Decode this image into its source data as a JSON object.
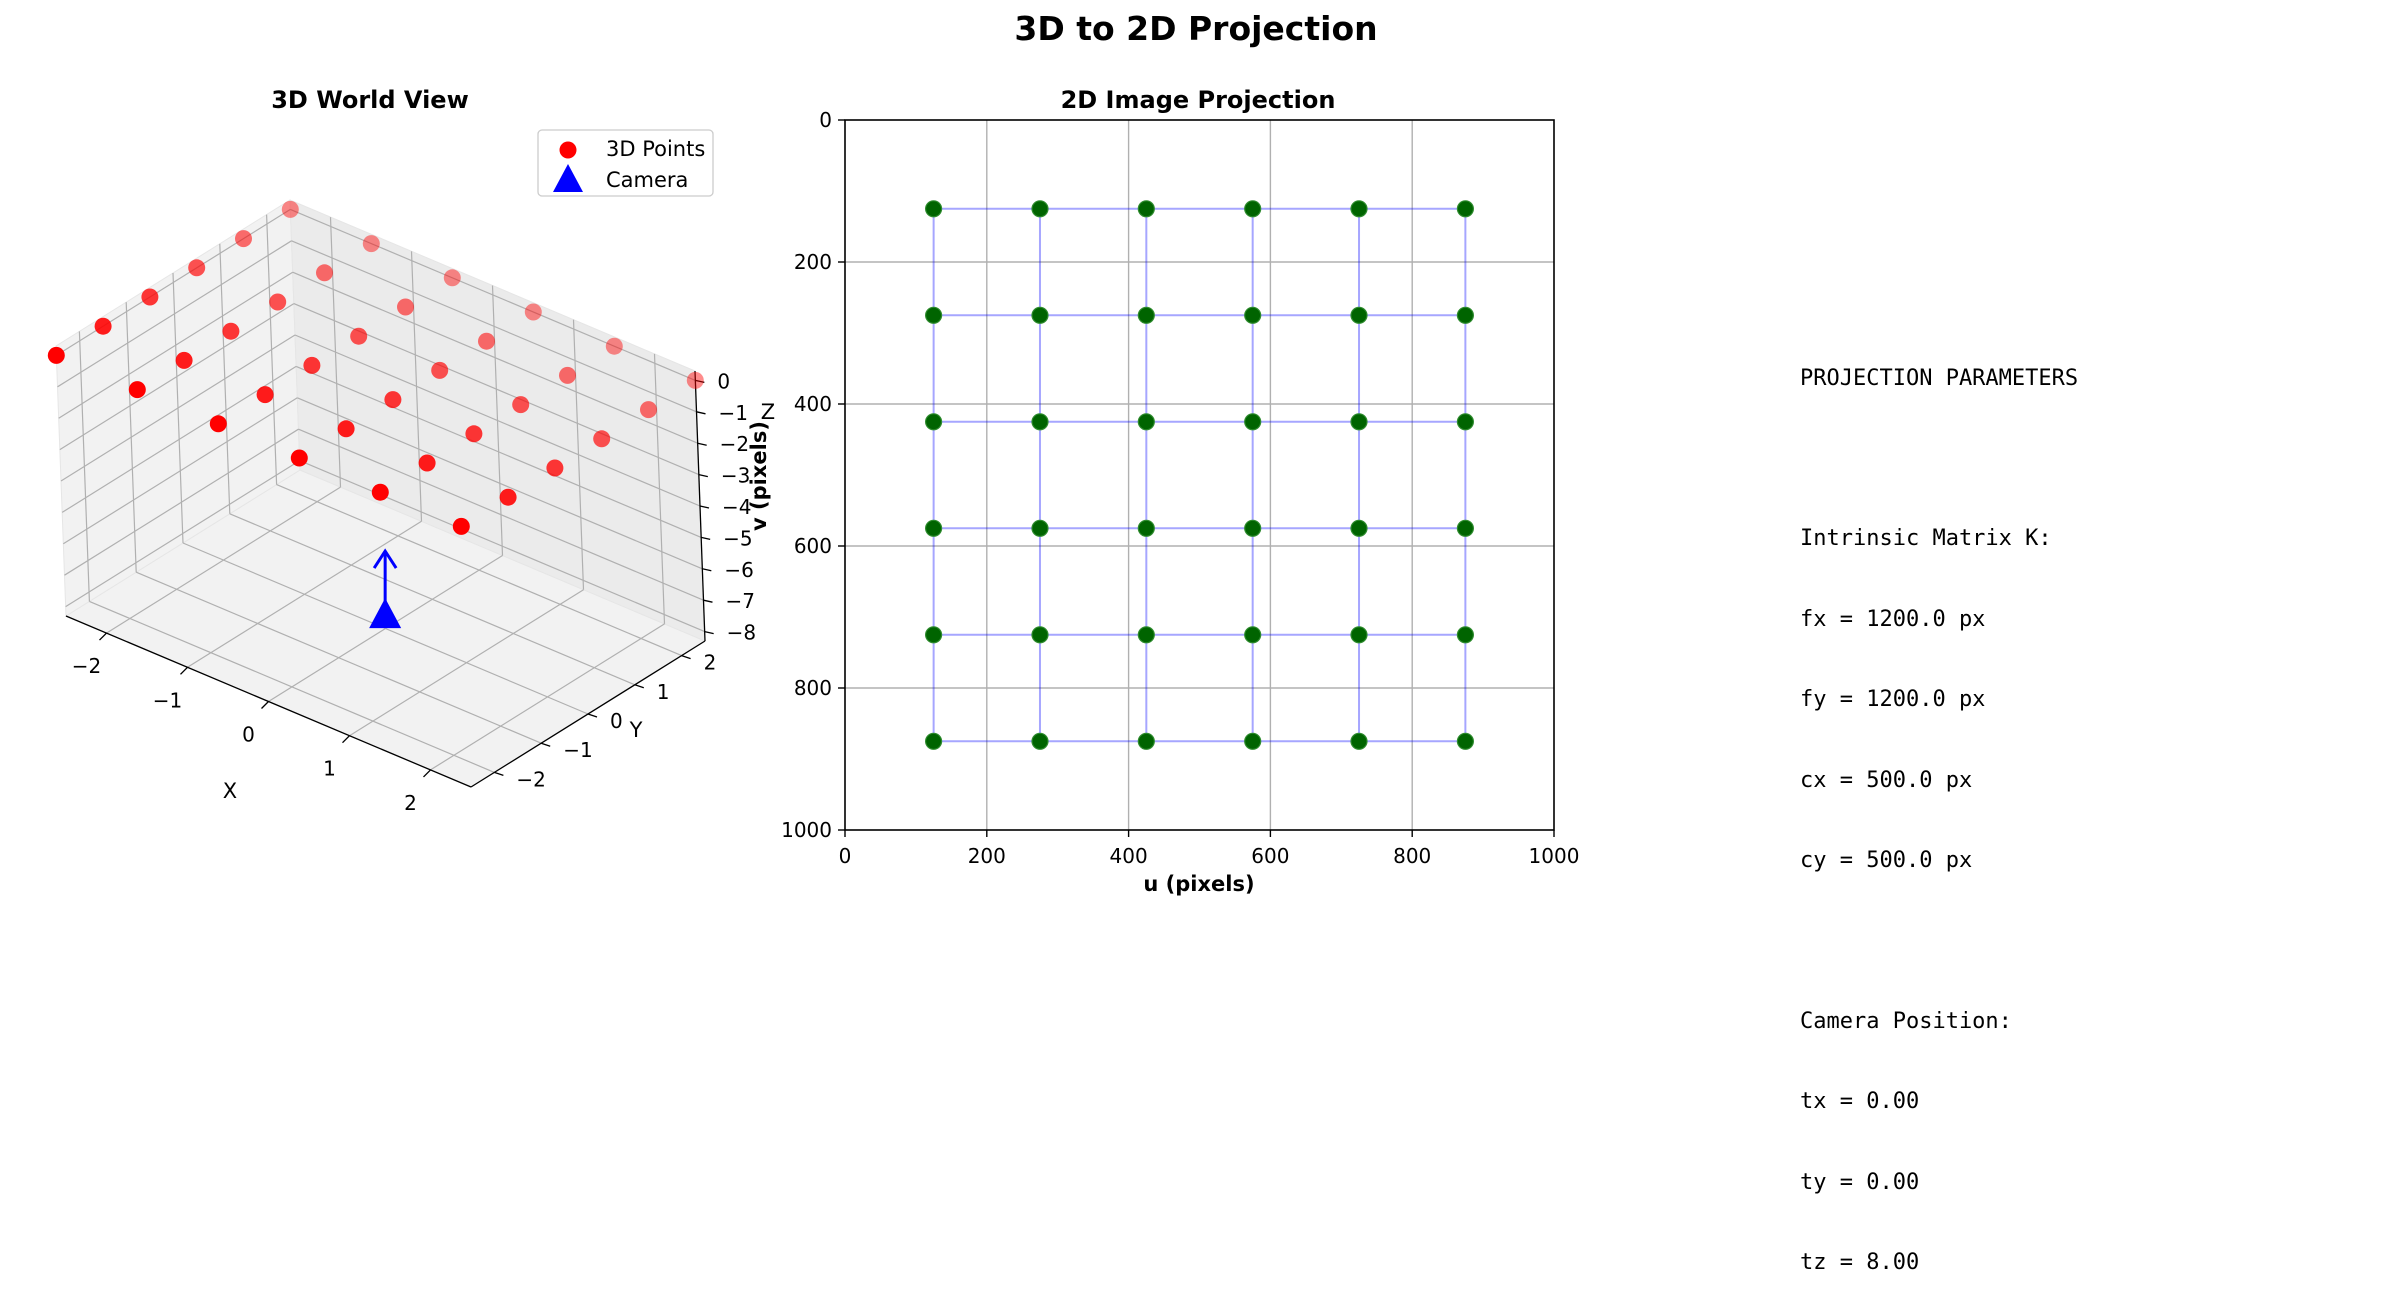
{
  "figure": {
    "suptitle": "3D to 2D Projection"
  },
  "chart_data": [
    {
      "type": "scatter",
      "title": "3D World View",
      "xlabel": "X",
      "ylabel": "Y",
      "zlabel": "Z",
      "xticks": [
        "−2",
        "−1",
        "0",
        "1",
        "2"
      ],
      "yticks": [
        "−2",
        "−1",
        "0",
        "1",
        "2"
      ],
      "zticks": [
        "0",
        "−1",
        "−2",
        "−3",
        "−4",
        "−5",
        "−6",
        "−7",
        "−8"
      ],
      "xlim": [
        -2.5,
        2.5
      ],
      "ylim": [
        -2.5,
        2.5
      ],
      "zlim": [
        -8.3,
        0.3
      ],
      "grid": true,
      "legend_position": "top-right",
      "colors": {
        "points": "#ff0000",
        "camera": "#0000ff"
      },
      "series": [
        {
          "name": "3D Points",
          "marker": "circle",
          "grid_x": [
            -2.5,
            -1.5,
            -0.5,
            0.5,
            1.5,
            2.5
          ],
          "grid_y": [
            -2.5,
            -1.5,
            -0.5,
            0.5,
            1.5,
            2.5
          ],
          "z": 0
        },
        {
          "name": "Camera",
          "marker": "triangle",
          "points": [
            {
              "x": 0,
              "y": 0,
              "z": -8
            }
          ],
          "direction": [
            0,
            0,
            1
          ]
        }
      ]
    },
    {
      "type": "scatter",
      "title": "2D Image Projection",
      "xlabel": "u (pixels)",
      "ylabel": "v (pixels)",
      "xlim": [
        0,
        1000
      ],
      "ylim": [
        1000,
        0
      ],
      "y_inverted": true,
      "xticks": [
        "0",
        "200",
        "400",
        "600",
        "800",
        "1000"
      ],
      "yticks": [
        "0",
        "200",
        "400",
        "600",
        "800",
        "1000"
      ],
      "grid": true,
      "colors": {
        "points": "#006400",
        "grid_lines": "#0000ff"
      },
      "u": [
        125,
        275,
        425,
        575,
        725,
        875
      ],
      "v": [
        125,
        275,
        425,
        575,
        725,
        875
      ]
    }
  ],
  "parameters": {
    "heading": "PROJECTION PARAMETERS",
    "intrinsic_heading": "Intrinsic Matrix K:",
    "fx": "fx = 1200.0 px",
    "fy": "fy = 1200.0 px",
    "cx": "cx = 500.0 px",
    "cy": "cy = 500.0 px",
    "camera_heading": "Camera Position:",
    "tx": "tx = 0.00",
    "ty": "ty = 0.00",
    "tz": "tz = 8.00"
  }
}
